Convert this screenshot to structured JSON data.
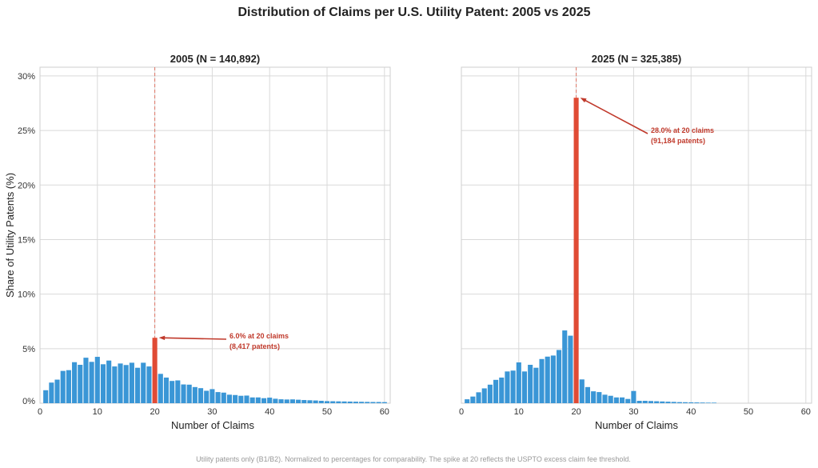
{
  "title": "Distribution of Claims per U.S. Utility Patent: 2005 vs 2025",
  "footnote": "Utility patents only (B1/B2). Normalized to percentages for comparability. The spike at 20 reflects the USPTO excess claim fee threshold.",
  "colors": {
    "bar": "#3a96d6",
    "highlight": "#e04b35",
    "annotation": "#c0392b",
    "grid": "#d9d9d9"
  },
  "chart_data": [
    {
      "type": "bar",
      "title": "2005  (N = 140,892)",
      "xlabel": "Number of Claims",
      "ylabel": "Share of Utility Patents (%)",
      "xlim": [
        0,
        61
      ],
      "ylim": [
        0,
        30.8
      ],
      "xticks": [
        "0",
        "10",
        "20",
        "30",
        "40",
        "50",
        "60"
      ],
      "yticks": [
        "0%",
        "5%",
        "10%",
        "15%",
        "20%",
        "25%",
        "30%"
      ],
      "grid": true,
      "x": [
        1,
        2,
        3,
        4,
        5,
        6,
        7,
        8,
        9,
        10,
        11,
        12,
        13,
        14,
        15,
        16,
        17,
        18,
        19,
        20,
        21,
        22,
        23,
        24,
        25,
        26,
        27,
        28,
        29,
        30,
        31,
        32,
        33,
        34,
        35,
        36,
        37,
        38,
        39,
        40,
        41,
        42,
        43,
        44,
        45,
        46,
        47,
        48,
        49,
        50,
        51,
        52,
        53,
        54,
        55,
        56,
        57,
        58,
        59,
        60
      ],
      "values": [
        1.19,
        1.89,
        2.16,
        2.96,
        3.03,
        3.76,
        3.52,
        4.17,
        3.79,
        4.25,
        3.57,
        3.91,
        3.37,
        3.64,
        3.5,
        3.71,
        3.25,
        3.71,
        3.37,
        6.0,
        2.69,
        2.35,
        2.04,
        2.09,
        1.72,
        1.7,
        1.48,
        1.38,
        1.14,
        1.29,
        1.02,
        0.97,
        0.78,
        0.75,
        0.68,
        0.7,
        0.53,
        0.53,
        0.46,
        0.51,
        0.41,
        0.36,
        0.34,
        0.35,
        0.32,
        0.29,
        0.27,
        0.25,
        0.22,
        0.19,
        0.18,
        0.17,
        0.16,
        0.15,
        0.14,
        0.13,
        0.12,
        0.11,
        0.11,
        0.1
      ],
      "highlight_x": 20,
      "annotation": {
        "line1": "6.0% at 20 claims",
        "line2": "(8,417 patents)"
      }
    },
    {
      "type": "bar",
      "title": "2025  (N = 325,385)",
      "xlabel": "Number of Claims",
      "ylabel": "",
      "xlim": [
        0,
        61
      ],
      "ylim": [
        0,
        30.8
      ],
      "xticks": [
        "0",
        "10",
        "20",
        "30",
        "40",
        "50",
        "60"
      ],
      "yticks": [],
      "grid": true,
      "x": [
        1,
        2,
        3,
        4,
        5,
        6,
        7,
        8,
        9,
        10,
        11,
        12,
        13,
        14,
        15,
        16,
        17,
        18,
        19,
        20,
        21,
        22,
        23,
        24,
        25,
        26,
        27,
        28,
        29,
        30,
        31,
        32,
        33,
        34,
        35,
        36,
        37,
        38,
        39,
        40,
        41,
        42,
        43,
        44
      ],
      "values": [
        0.36,
        0.61,
        1.0,
        1.36,
        1.7,
        2.14,
        2.35,
        2.91,
        2.99,
        3.74,
        2.91,
        3.52,
        3.25,
        4.05,
        4.27,
        4.37,
        4.88,
        6.67,
        6.19,
        28.0,
        2.18,
        1.48,
        1.09,
        1.02,
        0.78,
        0.68,
        0.53,
        0.53,
        0.39,
        1.12,
        0.22,
        0.22,
        0.2,
        0.18,
        0.16,
        0.14,
        0.12,
        0.1,
        0.09,
        0.08,
        0.07,
        0.06,
        0.05,
        0.05
      ],
      "highlight_x": 20,
      "annotation": {
        "line1": "28.0% at 20 claims",
        "line2": "(91,184 patents)"
      }
    }
  ]
}
